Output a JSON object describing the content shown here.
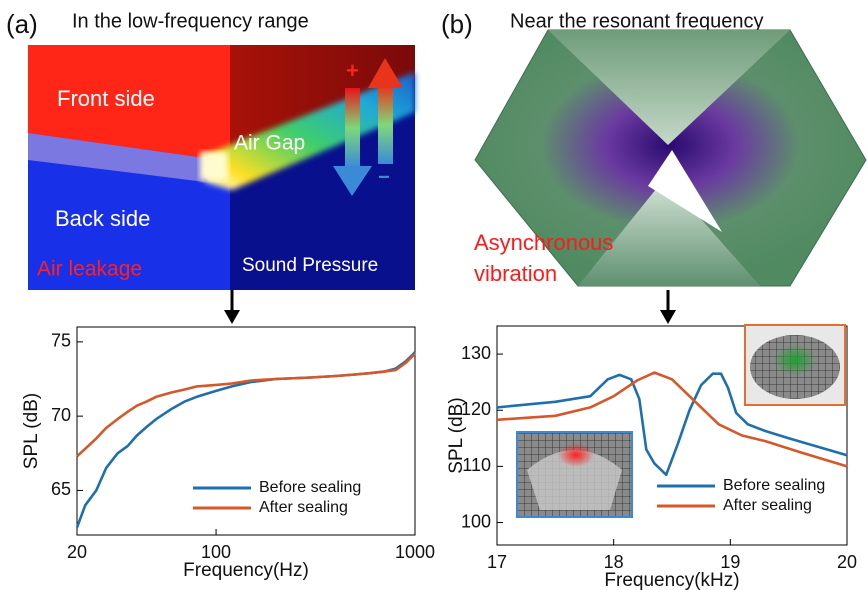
{
  "chart_data": [
    {
      "type": "line",
      "xscale": "log",
      "xlabel": "Frequency(Hz)",
      "ylabel": "SPL (dB)",
      "xlim": [
        20,
        1000
      ],
      "xticks": [
        20,
        100,
        1000
      ],
      "ylim": [
        62,
        76
      ],
      "yticks": [
        65,
        70,
        75
      ],
      "series": [
        {
          "name": "Before sealing",
          "color": "#1f6fae",
          "x": [
            20,
            22,
            25,
            28,
            32,
            36,
            40,
            45,
            50,
            60,
            70,
            80,
            100,
            120,
            150,
            200,
            300,
            400,
            500,
            600,
            700,
            800,
            900,
            1000
          ],
          "values": [
            62.5,
            64,
            65,
            66.5,
            67.5,
            68,
            68.7,
            69.3,
            69.8,
            70.5,
            71,
            71.3,
            71.7,
            72,
            72.3,
            72.5,
            72.6,
            72.7,
            72.8,
            72.9,
            73,
            73.2,
            73.7,
            74.3
          ]
        },
        {
          "name": "After sealing",
          "color": "#d4582a",
          "x": [
            20,
            22,
            25,
            28,
            32,
            36,
            40,
            45,
            50,
            60,
            70,
            80,
            100,
            120,
            150,
            200,
            300,
            400,
            500,
            600,
            700,
            800,
            900,
            1000
          ],
          "values": [
            67.3,
            67.8,
            68.5,
            69.2,
            69.8,
            70.3,
            70.7,
            71,
            71.3,
            71.6,
            71.8,
            72,
            72.1,
            72.2,
            72.4,
            72.5,
            72.6,
            72.7,
            72.8,
            72.9,
            73,
            73.1,
            73.6,
            74.2
          ]
        }
      ]
    },
    {
      "type": "line",
      "xscale": "linear",
      "xlabel": "Frequency(kHz)",
      "ylabel": "SPL (dB)",
      "xlim": [
        17,
        20
      ],
      "xticks": [
        17,
        18,
        19,
        20
      ],
      "ylim": [
        96,
        135
      ],
      "yticks": [
        100,
        110,
        120,
        130
      ],
      "series": [
        {
          "name": "Before sealing",
          "color": "#1f6fae",
          "x": [
            17,
            17.5,
            17.8,
            17.95,
            18.05,
            18.15,
            18.22,
            18.28,
            18.35,
            18.45,
            18.55,
            18.65,
            18.75,
            18.85,
            18.92,
            18.98,
            19.05,
            19.15,
            19.3,
            19.5,
            19.75,
            20
          ],
          "values": [
            120.5,
            121.5,
            122.5,
            125.5,
            126.3,
            125.5,
            122,
            113,
            110.5,
            108.5,
            114,
            120,
            124.5,
            126.5,
            126.5,
            124,
            119.5,
            117.5,
            116.3,
            115,
            113.5,
            112
          ]
        },
        {
          "name": "After sealing",
          "color": "#d4582a",
          "x": [
            17,
            17.5,
            17.8,
            18,
            18.2,
            18.35,
            18.5,
            18.7,
            18.9,
            19.1,
            19.3,
            19.6,
            20
          ],
          "values": [
            118.3,
            119,
            120.5,
            122.5,
            125.3,
            126.7,
            125.5,
            121.5,
            117.5,
            115.5,
            114.5,
            112.5,
            110
          ]
        }
      ]
    }
  ],
  "panels": [
    {
      "label": "(a)",
      "heading": "In the low-frequency range",
      "annotations": [
        "Front side",
        "Air Gap",
        "Back side",
        "Air leakage",
        "Sound Pressure",
        "+",
        "−"
      ]
    },
    {
      "label": "(b)",
      "heading": "Near the resonant frequency",
      "annotations": [
        "Asynchronous",
        "vibration"
      ]
    }
  ]
}
